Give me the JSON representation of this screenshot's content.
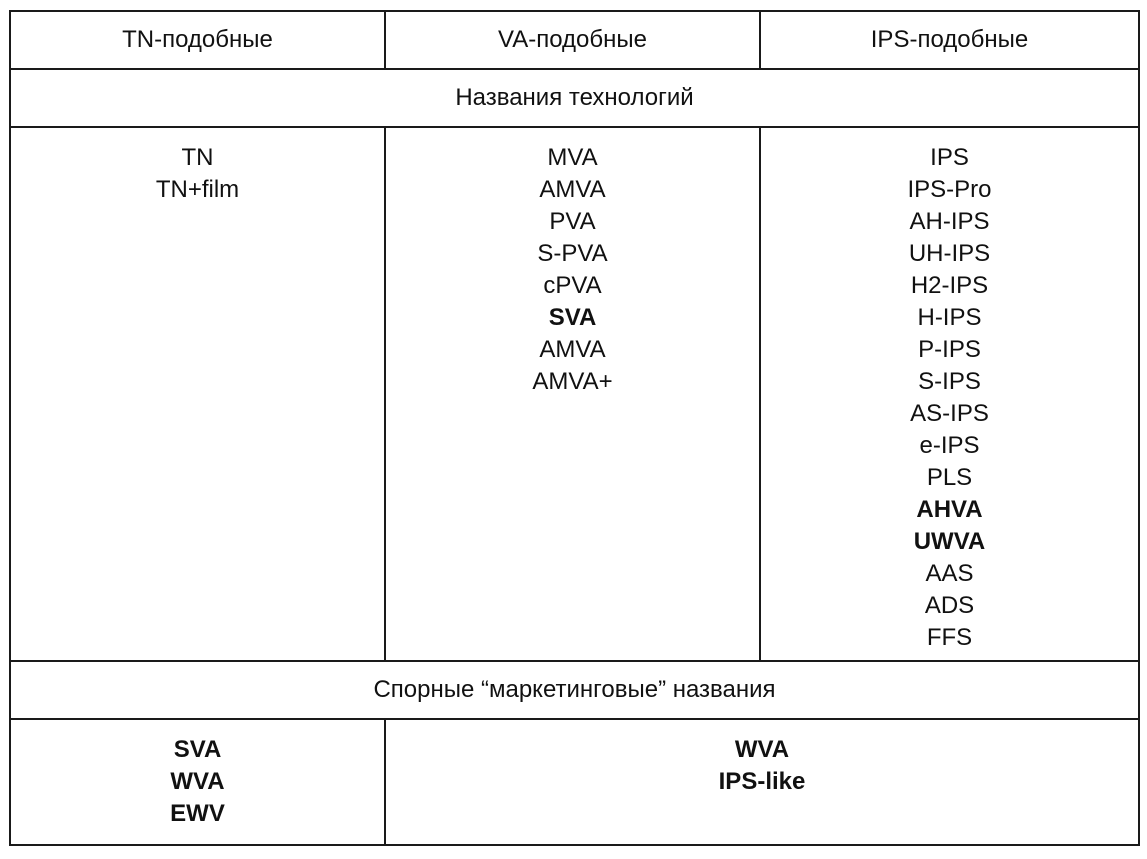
{
  "headers": [
    "TN-подобные",
    "VA-подобные",
    "IPS-подобные"
  ],
  "section1_title": "Названия технологий",
  "technologies": [
    [
      {
        "t": "TN"
      },
      {
        "t": "TN+film"
      }
    ],
    [
      {
        "t": "MVA"
      },
      {
        "t": "AMVA"
      },
      {
        "t": "PVA"
      },
      {
        "t": "S-PVA"
      },
      {
        "t": "cPVA"
      },
      {
        "t": "SVA",
        "bold": true
      },
      {
        "t": "AMVA"
      },
      {
        "t": "AMVA+"
      }
    ],
    [
      {
        "t": "IPS"
      },
      {
        "t": "IPS-Pro"
      },
      {
        "t": "AH-IPS"
      },
      {
        "t": "UH-IPS"
      },
      {
        "t": "H2-IPS"
      },
      {
        "t": "H-IPS"
      },
      {
        "t": "P-IPS"
      },
      {
        "t": "S-IPS"
      },
      {
        "t": "AS-IPS"
      },
      {
        "t": "e-IPS"
      },
      {
        "t": "PLS"
      },
      {
        "t": "AHVA",
        "bold": true
      },
      {
        "t": "UWVA",
        "bold": true
      },
      {
        "t": "AAS"
      },
      {
        "t": "ADS"
      },
      {
        "t": "FFS"
      }
    ]
  ],
  "section2_title": "Спорные “маркетинговые” названия",
  "marketing": {
    "tn_like": [
      "SVA",
      "WVA",
      "EWV"
    ],
    "va_ips_like": [
      "WVA",
      "IPS-like"
    ]
  }
}
